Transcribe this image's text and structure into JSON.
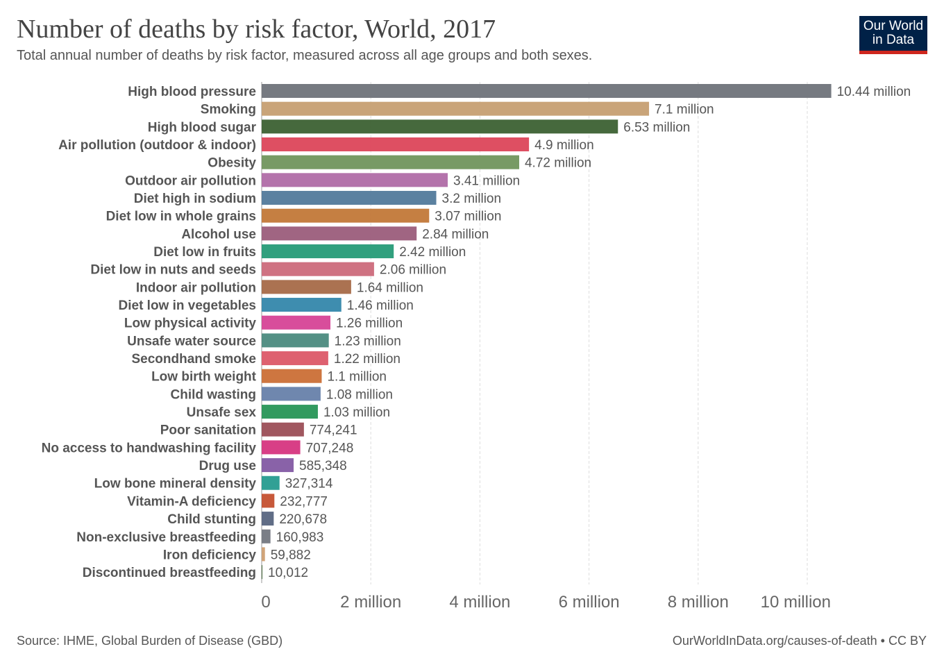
{
  "chart_data": {
    "type": "bar",
    "orientation": "horizontal",
    "title": "Number of deaths by risk factor, World, 2017",
    "subtitle": "Total annual number of deaths by risk factor, measured across all age groups and both sexes.",
    "xlim": [
      0,
      10440000
    ],
    "grid": true,
    "x_ticks": [
      0,
      2000000,
      4000000,
      6000000,
      8000000,
      10000000
    ],
    "x_tick_labels": [
      "0",
      "2 million",
      "4 million",
      "6 million",
      "8 million",
      "10 million"
    ],
    "bars": [
      {
        "category": "High blood pressure",
        "value": 10440000,
        "label": "10.44 million",
        "color": "#6f737a"
      },
      {
        "category": "Smoking",
        "value": 7100000,
        "label": "7.1 million",
        "color": "#c69f72"
      },
      {
        "category": "High blood sugar",
        "value": 6530000,
        "label": "6.53 million",
        "color": "#3c6133"
      },
      {
        "category": "Air pollution (outdoor & indoor)",
        "value": 4900000,
        "label": "4.9 million",
        "color": "#dc465a"
      },
      {
        "category": "Obesity",
        "value": 4720000,
        "label": "4.72 million",
        "color": "#71955d"
      },
      {
        "category": "Outdoor air pollution",
        "value": 3410000,
        "label": "3.41 million",
        "color": "#b06ca6"
      },
      {
        "category": "Diet high in sodium",
        "value": 3200000,
        "label": "3.2 million",
        "color": "#527a9b"
      },
      {
        "category": "Diet low in whole grains",
        "value": 3070000,
        "label": "3.07 million",
        "color": "#c27838"
      },
      {
        "category": "Alcohol use",
        "value": 2840000,
        "label": "2.84 million",
        "color": "#9b5d7b"
      },
      {
        "category": "Diet low in fruits",
        "value": 2420000,
        "label": "2.42 million",
        "color": "#269b77"
      },
      {
        "category": "Diet low in nuts and seeds",
        "value": 2060000,
        "label": "2.06 million",
        "color": "#cc6a7b"
      },
      {
        "category": "Indoor air pollution",
        "value": 1640000,
        "label": "1.64 million",
        "color": "#a66a48"
      },
      {
        "category": "Diet low in vegetables",
        "value": 1460000,
        "label": "1.46 million",
        "color": "#3487ab"
      },
      {
        "category": "Low physical activity",
        "value": 1260000,
        "label": "1.26 million",
        "color": "#d64396"
      },
      {
        "category": "Unsafe water source",
        "value": 1230000,
        "label": "1.23 million",
        "color": "#4b8a7e"
      },
      {
        "category": "Secondhand smoke",
        "value": 1220000,
        "label": "1.22 million",
        "color": "#dc5868"
      },
      {
        "category": "Low birth weight",
        "value": 1100000,
        "label": "1.1 million",
        "color": "#cb6f36"
      },
      {
        "category": "Child wasting",
        "value": 1080000,
        "label": "1.08 million",
        "color": "#6781aa"
      },
      {
        "category": "Unsafe sex",
        "value": 1030000,
        "label": "1.03 million",
        "color": "#279556"
      },
      {
        "category": "Poor sanitation",
        "value": 774241,
        "label": "774,241",
        "color": "#9b4e56"
      },
      {
        "category": "No access to handwashing facility",
        "value": 707248,
        "label": "707,248",
        "color": "#d6357f"
      },
      {
        "category": "Drug use",
        "value": 585348,
        "label": "585,348",
        "color": "#835aa3"
      },
      {
        "category": "Low bone mineral density",
        "value": 327314,
        "label": "327,314",
        "color": "#269b8f"
      },
      {
        "category": "Vitamin-A deficiency",
        "value": 232777,
        "label": "232,777",
        "color": "#c4502f"
      },
      {
        "category": "Child stunting",
        "value": 220678,
        "label": "220,678",
        "color": "#576580"
      },
      {
        "category": "Non-exclusive breastfeeding",
        "value": 160983,
        "label": "160,983",
        "color": "#737780"
      },
      {
        "category": "Iron deficiency",
        "value": 59882,
        "label": "59,882",
        "color": "#cf9f72"
      },
      {
        "category": "Discontinued breastfeeding",
        "value": 10012,
        "label": "10,012",
        "color": "#3c6133"
      }
    ]
  },
  "logo": {
    "line1": "Our World",
    "line2": "in Data",
    "bg": "#002147",
    "accent": "#ce261e"
  },
  "footer": {
    "source": "Source: IHME, Global Burden of Disease (GBD)",
    "credit": "OurWorldInData.org/causes-of-death • CC BY"
  }
}
